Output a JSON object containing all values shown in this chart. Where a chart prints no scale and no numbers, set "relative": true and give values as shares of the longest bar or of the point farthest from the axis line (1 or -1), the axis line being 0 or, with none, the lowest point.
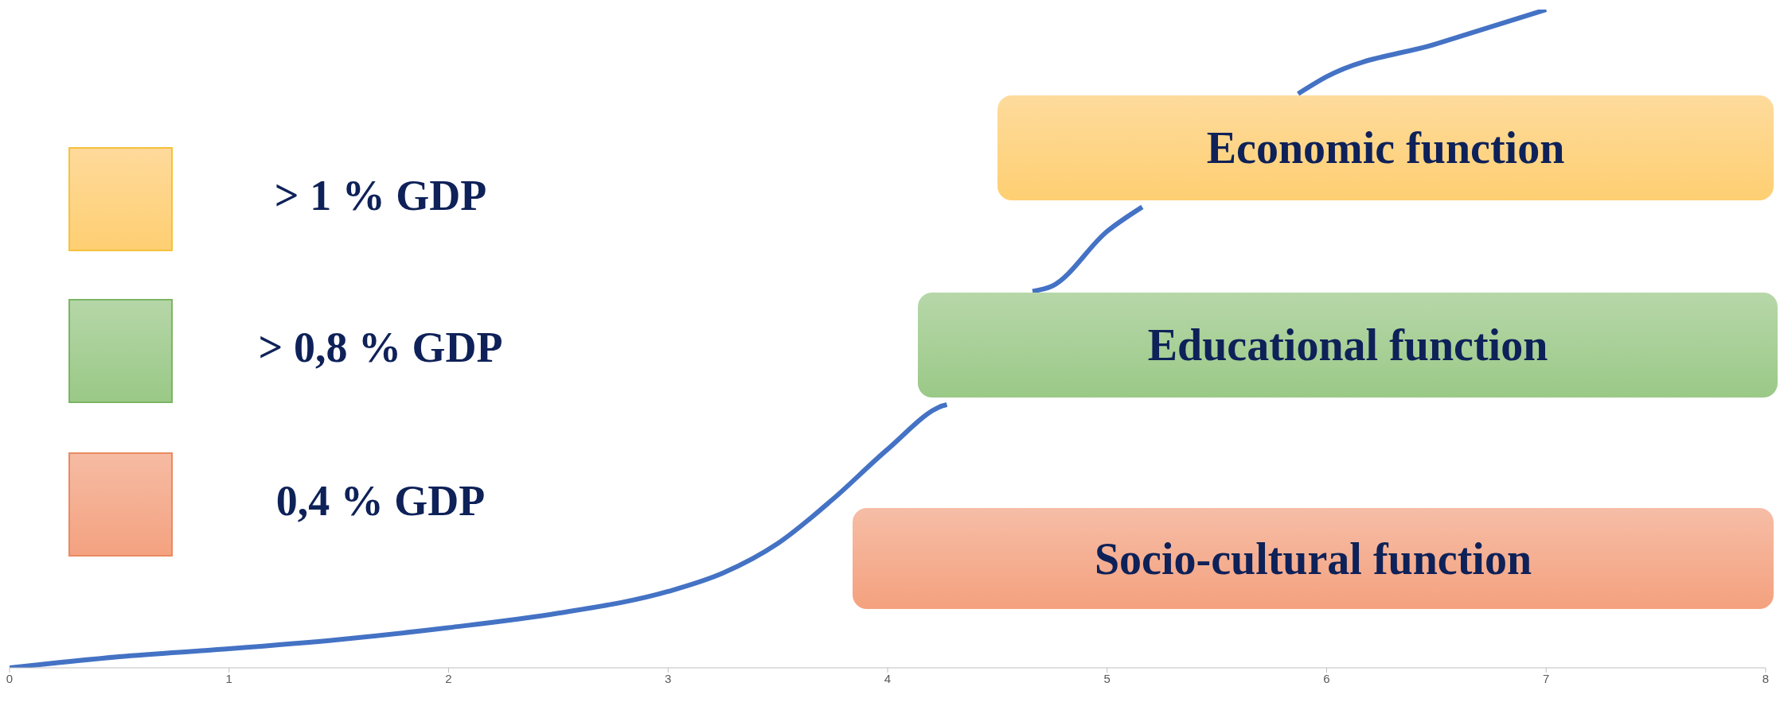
{
  "chart_data": {
    "type": "line",
    "relative": true,
    "x": [
      0,
      0.5,
      1,
      1.5,
      2,
      2.5,
      3,
      3.25,
      3.5,
      3.75,
      4,
      4.25,
      4.27,
      4.5,
      4.66,
      4.75,
      5,
      5.16,
      5.25,
      5.5,
      5.75,
      5.87,
      6,
      6.5,
      7
    ],
    "series": [
      {
        "color": "#4472c4",
        "values": [
          0,
          0.017,
          0.029,
          0.043,
          0.061,
          0.083,
          0.116,
          0.144,
          0.189,
          0.256,
          0.332,
          0.398,
          0.4,
          null,
          0.572,
          0.58,
          0.663,
          0.7,
          null,
          null,
          null,
          0.872,
          0.898,
          0.948,
          1
        ]
      }
    ],
    "xlim": [
      0,
      8
    ],
    "xticks": [
      0,
      1,
      2,
      3,
      4,
      5,
      6,
      7,
      8
    ],
    "grid": false,
    "legend": false,
    "marker": "none",
    "line_style": "solid",
    "annotations": [
      "> 1 % GDP",
      "> 0,8 % GDP",
      "0,4 % GDP",
      "Economic function",
      "Educational function",
      "Socio-cultural function"
    ]
  }
}
